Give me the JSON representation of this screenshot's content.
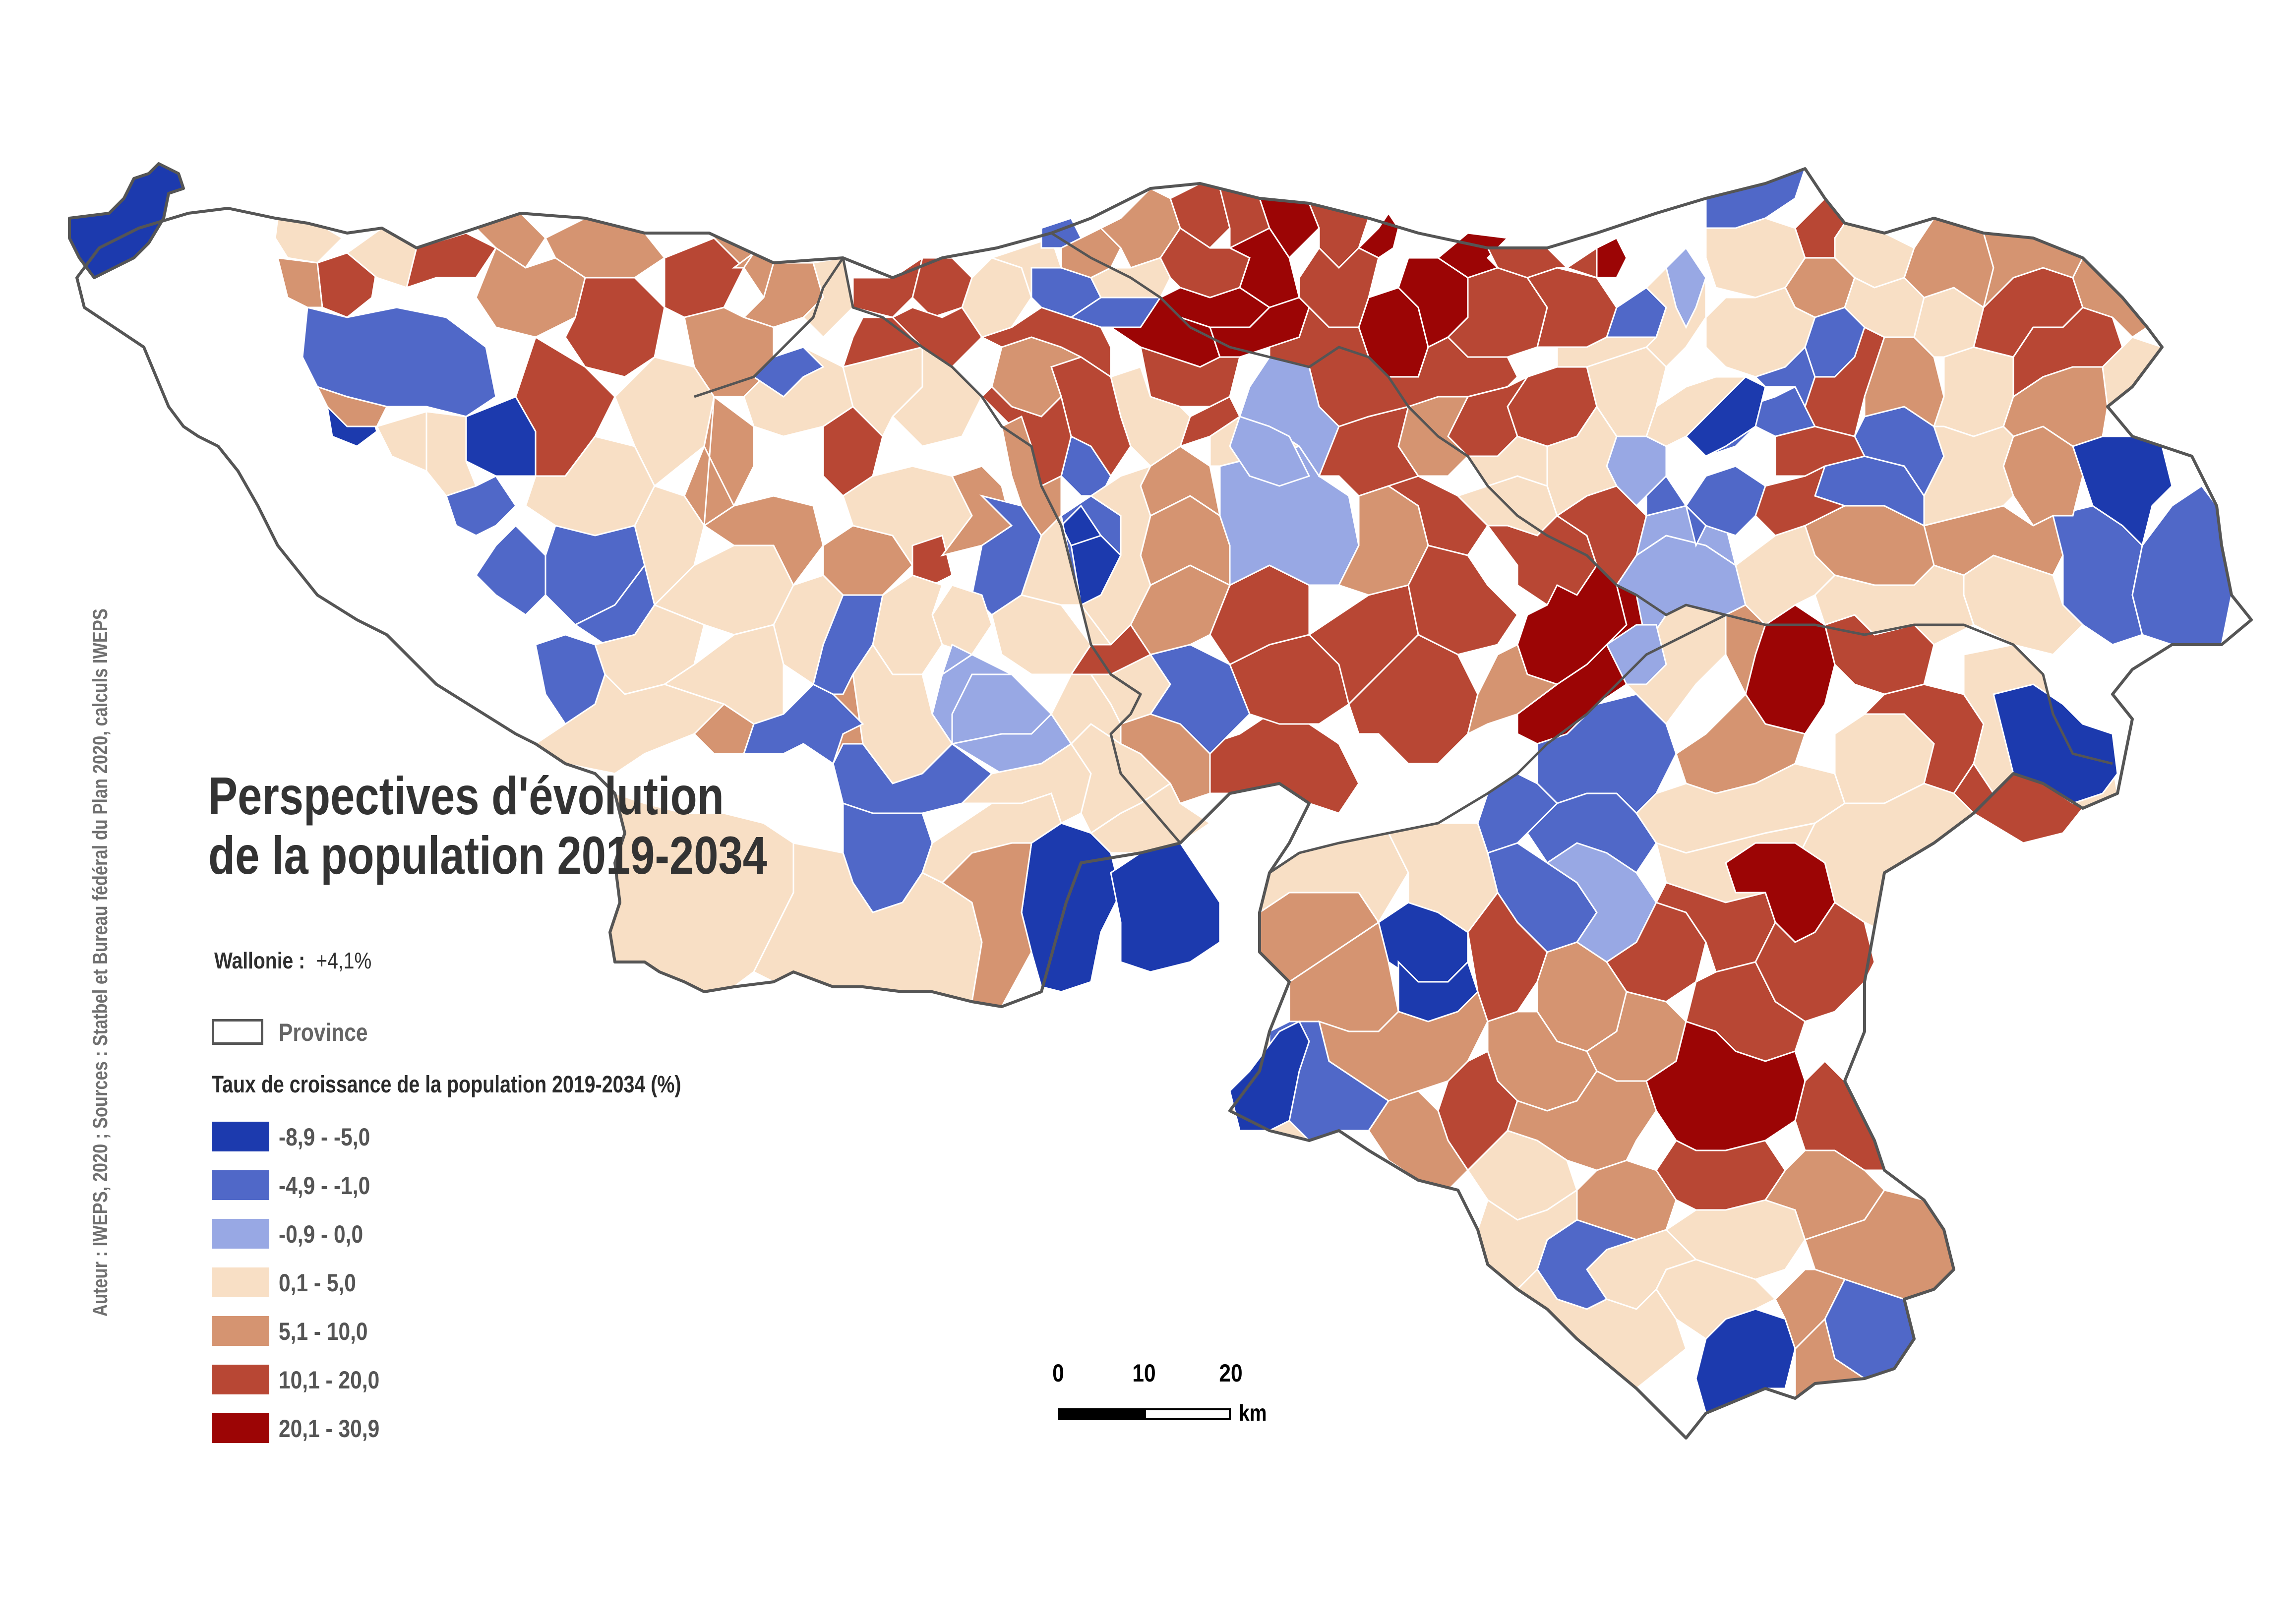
{
  "title": {
    "line1": "Perspectives d'évolution",
    "line2": "de la population 2019-2034"
  },
  "region_summary": {
    "label": "Wallonie :",
    "value": "+4,1%"
  },
  "province_legend": {
    "label": "Province"
  },
  "legend": {
    "title": "Taux de croissance de la population 2019-2034 (%)",
    "classes": [
      {
        "label": "-8,9 - -5,0",
        "color": "#1c3aae"
      },
      {
        "label": "-4,9 - -1,0",
        "color": "#5068c8"
      },
      {
        "label": "-0,9 - 0,0",
        "color": "#98a8e4"
      },
      {
        "label": "0,1 - 5,0",
        "color": "#f8dfc5"
      },
      {
        "label": "5,1 - 10,0",
        "color": "#d59471"
      },
      {
        "label": "10,1 - 20,0",
        "color": "#b84734"
      },
      {
        "label": "20,1 - 30,9",
        "color": "#9c0505"
      }
    ]
  },
  "credits": "Auteur : IWEPS, 2020 ; Sources : Statbel et Bureau fédéral du Plan 2020, calculs IWEPS",
  "scale_bar": {
    "ticks": [
      "0",
      "10",
      "20"
    ],
    "unit": "km"
  }
}
